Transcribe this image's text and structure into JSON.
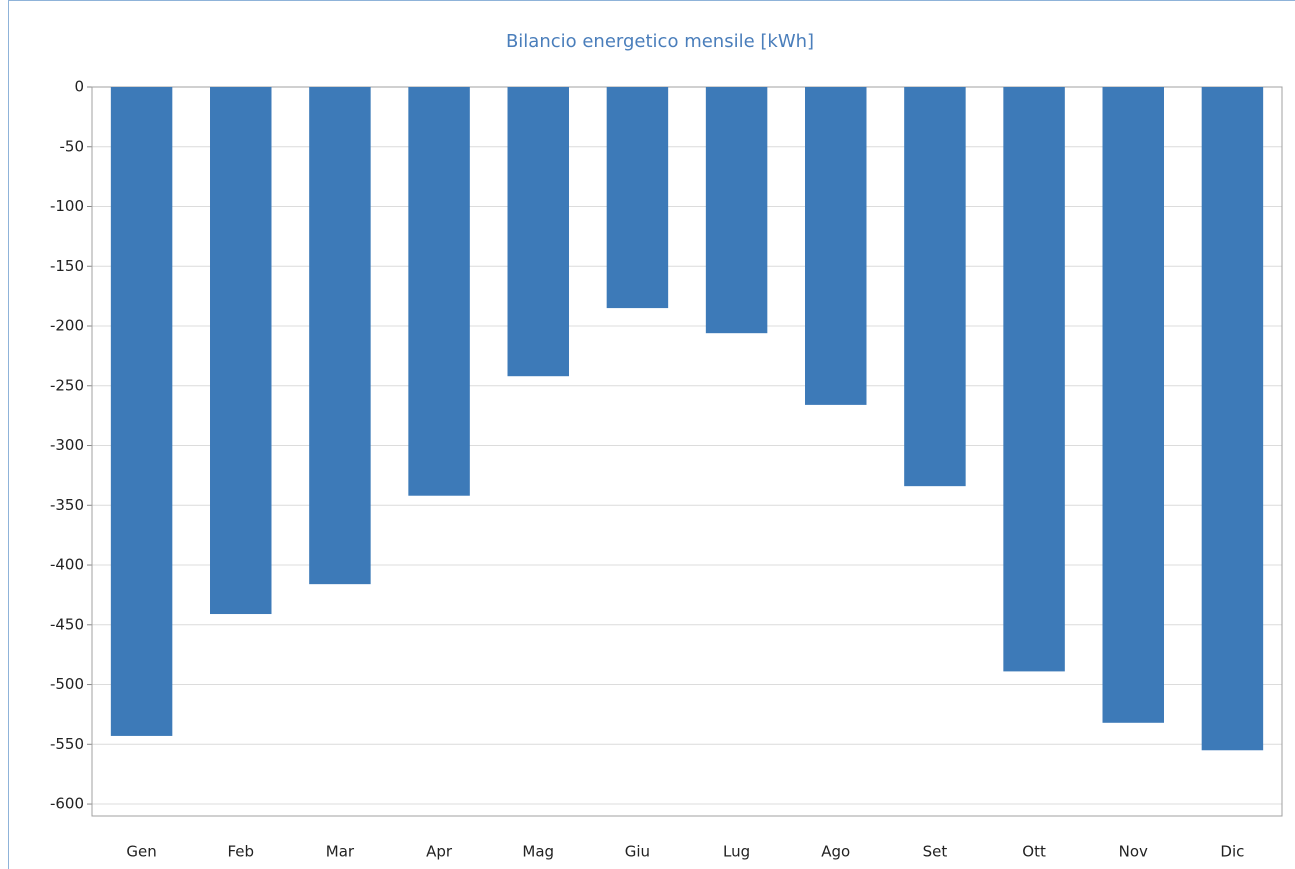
{
  "chart_data": {
    "type": "bar",
    "title": "Bilancio energetico mensile [kWh]",
    "categories": [
      "Gen",
      "Feb",
      "Mar",
      "Apr",
      "Mag",
      "Giu",
      "Lug",
      "Ago",
      "Set",
      "Ott",
      "Nov",
      "Dic"
    ],
    "values": [
      -543,
      -441,
      -416,
      -342,
      -242,
      -185,
      -206,
      -266,
      -334,
      -489,
      -532,
      -555
    ],
    "color": "#3d7ab8",
    "ylim": [
      -610,
      0
    ],
    "yticks": [
      0,
      -50,
      -100,
      -150,
      -200,
      -250,
      -300,
      -350,
      -400,
      -450,
      -500,
      -550,
      -600
    ],
    "grid": true
  }
}
